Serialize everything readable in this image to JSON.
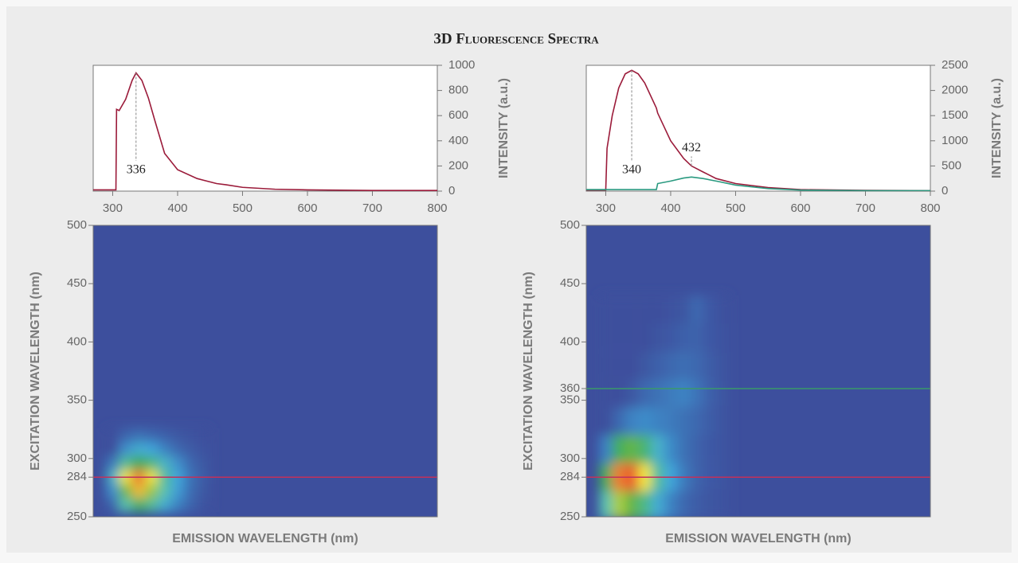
{
  "title": "3D Fluorescence Spectra",
  "chart_data": [
    {
      "type": "line",
      "ylabel": "INTENSITY (a.u.)",
      "xlim": [
        270,
        800
      ],
      "xticks": [
        300,
        400,
        500,
        600,
        700,
        800
      ],
      "ylim": [
        0,
        1000
      ],
      "yticks": [
        0,
        200,
        400,
        600,
        800,
        1000
      ],
      "x": [
        270,
        305,
        306,
        310,
        320,
        330,
        336,
        345,
        355,
        365,
        380,
        400,
        430,
        460,
        475,
        500,
        550,
        600,
        700,
        800
      ],
      "series": [
        {
          "color": "#9b1b3a",
          "values": [
            10,
            10,
            650,
            640,
            730,
            880,
            940,
            880,
            740,
            560,
            300,
            170,
            100,
            60,
            50,
            30,
            15,
            10,
            5,
            5
          ]
        }
      ],
      "annotations": [
        {
          "label": "336",
          "x": 336
        }
      ]
    },
    {
      "type": "heatmap",
      "xlabel": "EMISSION WAVELENGTH (nm)",
      "ylabel": "EXCITATION WAVELENGTH (nm)",
      "xlim": [
        270,
        800
      ],
      "ylim": [
        250,
        500
      ],
      "yticks": [
        250,
        284,
        300,
        350,
        400,
        450,
        500
      ],
      "zlim": [
        0,
        1000
      ],
      "colormap": [
        "#3d4f9d",
        "#3fa6dc",
        "#58c3b0",
        "#3faa4a",
        "#f3e63c",
        "#e83a2a"
      ],
      "x": [
        300,
        320,
        340,
        360,
        380,
        400,
        420,
        440
      ],
      "y": [
        260,
        272,
        284,
        296,
        308,
        320
      ],
      "z": [
        [
          50,
          400,
          550,
          450,
          250,
          120,
          50,
          10
        ],
        [
          150,
          650,
          850,
          700,
          400,
          180,
          70,
          20
        ],
        [
          300,
          800,
          940,
          800,
          450,
          200,
          80,
          30
        ],
        [
          100,
          450,
          600,
          500,
          300,
          150,
          60,
          20
        ],
        [
          0,
          150,
          250,
          200,
          120,
          60,
          30,
          10
        ],
        [
          0,
          50,
          80,
          60,
          40,
          20,
          10,
          0
        ]
      ],
      "reference_lines": [
        {
          "value": 284,
          "color": "#c4305a"
        }
      ]
    },
    {
      "type": "line",
      "ylabel": "INTENSITY (a.u.)",
      "xlim": [
        270,
        800
      ],
      "xticks": [
        300,
        400,
        500,
        600,
        700,
        800
      ],
      "ylim": [
        0,
        2500
      ],
      "yticks": [
        0,
        500,
        1000,
        1500,
        2000,
        2500
      ],
      "x": [
        270,
        300,
        302,
        310,
        320,
        330,
        340,
        350,
        360,
        378,
        380,
        400,
        420,
        432,
        450,
        470,
        500,
        550,
        600,
        700,
        800
      ],
      "series": [
        {
          "color": "#9b1b3a",
          "values": [
            20,
            20,
            850,
            1500,
            2050,
            2330,
            2400,
            2330,
            2150,
            1650,
            1550,
            1000,
            650,
            500,
            380,
            250,
            150,
            70,
            30,
            15,
            10
          ]
        },
        {
          "color": "#2a9a80",
          "values": [
            30,
            30,
            30,
            30,
            30,
            30,
            30,
            30,
            30,
            30,
            150,
            200,
            260,
            280,
            250,
            200,
            120,
            50,
            20,
            10,
            10
          ]
        }
      ],
      "annotations": [
        {
          "label": "340",
          "x": 340
        },
        {
          "label": "432",
          "x": 432
        }
      ]
    },
    {
      "type": "heatmap",
      "xlabel": "EMISSION WAVELENGTH (nm)",
      "ylabel": "EXCITATION WAVELENGTH (nm)",
      "xlim": [
        270,
        800
      ],
      "ylim": [
        250,
        500
      ],
      "yticks": [
        250,
        284,
        300,
        350,
        360,
        400,
        450,
        500
      ],
      "zlim": [
        0,
        2500
      ],
      "colormap": [
        "#3d4f9d",
        "#3fa6dc",
        "#58c3b0",
        "#3faa4a",
        "#f3e63c",
        "#e83a2a"
      ],
      "x": [
        300,
        320,
        340,
        360,
        380,
        400,
        420,
        440,
        460,
        480
      ],
      "y": [
        260,
        284,
        308,
        332,
        356,
        380,
        404,
        428
      ],
      "z": [
        [
          1000,
          1800,
          1600,
          1200,
          600,
          300,
          150,
          80,
          40,
          20
        ],
        [
          1400,
          2300,
          2400,
          2000,
          1100,
          500,
          250,
          120,
          60,
          30
        ],
        [
          300,
          1400,
          1600,
          1300,
          700,
          350,
          200,
          120,
          60,
          30
        ],
        [
          0,
          150,
          300,
          350,
          300,
          250,
          200,
          150,
          80,
          30
        ],
        [
          0,
          0,
          50,
          150,
          200,
          250,
          300,
          220,
          100,
          40
        ],
        [
          0,
          0,
          0,
          50,
          100,
          150,
          180,
          150,
          80,
          30
        ],
        [
          0,
          0,
          0,
          0,
          30,
          60,
          100,
          120,
          60,
          20
        ],
        [
          0,
          0,
          0,
          0,
          0,
          20,
          40,
          150,
          60,
          10
        ]
      ],
      "reference_lines": [
        {
          "value": 284,
          "color": "#c4305a"
        },
        {
          "value": 360,
          "color": "#3a9a6a"
        }
      ]
    }
  ]
}
